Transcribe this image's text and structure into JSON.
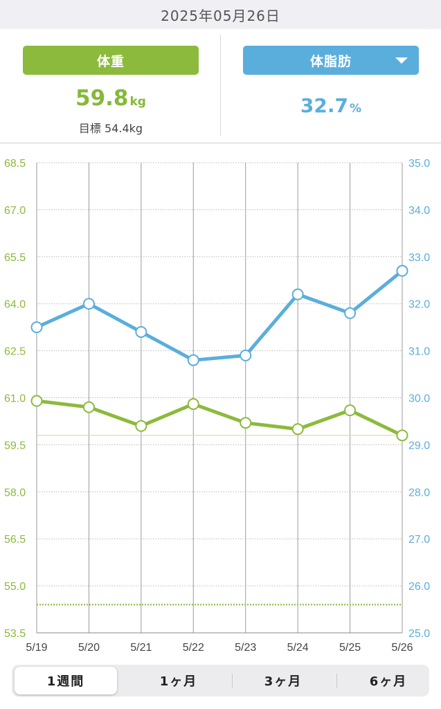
{
  "header": {
    "date": "2025年05月26日"
  },
  "weight": {
    "label": "体重",
    "value": "59.8",
    "unit": "kg",
    "target_text": "目標 54.4kg",
    "color": "#8cba3c"
  },
  "body_fat": {
    "label": "体脂肪",
    "value": "32.7",
    "unit": "%",
    "color": "#5aaedc",
    "dropdown_icon": "triangle-down-icon"
  },
  "range_tabs": [
    {
      "label": "1週間",
      "active": true
    },
    {
      "label": "1ヶ月",
      "active": false
    },
    {
      "label": "3ヶ月",
      "active": false
    },
    {
      "label": "6ヶ月",
      "active": false
    }
  ],
  "chart_data": {
    "type": "line",
    "categories": [
      "5/19",
      "5/20",
      "5/21",
      "5/22",
      "5/23",
      "5/24",
      "5/25",
      "5/26"
    ],
    "left_axis": {
      "ticks": [
        "68.5",
        "67.0",
        "65.5",
        "64.0",
        "62.5",
        "61.0",
        "59.5",
        "58.0",
        "56.5",
        "55.0",
        "53.5"
      ],
      "ylim": [
        53.5,
        68.5
      ],
      "color": "#8cba3c"
    },
    "right_axis": {
      "ticks": [
        "35.0",
        "34.0",
        "33.0",
        "32.0",
        "31.0",
        "30.0",
        "29.0",
        "28.0",
        "27.0",
        "26.0",
        "25.0"
      ],
      "ylim": [
        25.0,
        35.0
      ],
      "color": "#5aaedc"
    },
    "series": [
      {
        "axis": "left",
        "color": "#8cba3c",
        "values": [
          60.9,
          60.7,
          60.1,
          60.8,
          60.2,
          60.0,
          60.6,
          59.8
        ]
      },
      {
        "axis": "right",
        "color": "#5aaedc",
        "values": [
          31.5,
          32.0,
          31.4,
          30.8,
          30.9,
          32.2,
          31.8,
          32.7
        ]
      }
    ],
    "reference_lines": [
      {
        "axis": "left",
        "value": 59.8,
        "style": "solid",
        "color": "#f0cf95"
      },
      {
        "axis": "left",
        "value": 54.4,
        "style": "dotted",
        "color": "#9cc35a"
      }
    ],
    "grid": true
  }
}
